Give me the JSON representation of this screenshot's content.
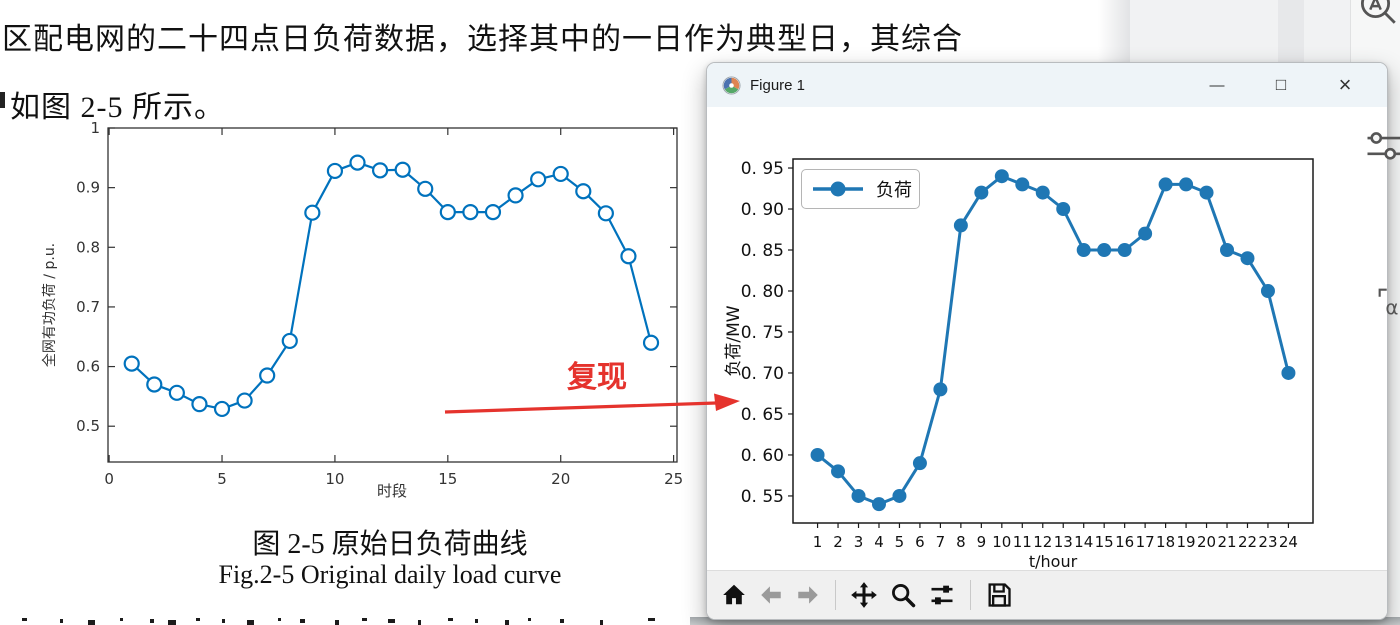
{
  "document": {
    "body_line1": "区配电网的二十四点日负荷数据，选择其中的一日作为典型日，其综合",
    "body_line2": "如图 2-5 所示。",
    "caption_zh": "图 2-5  原始日负荷曲线",
    "caption_en": "Fig.2-5 Original daily load curve"
  },
  "annotation": {
    "text": "复现",
    "color": "#e5332d"
  },
  "window": {
    "title": "Figure 1",
    "icon": "matplotlib-logo",
    "buttons": [
      {
        "name": "minimize",
        "glyph": "—"
      },
      {
        "name": "maximize",
        "glyph": "□"
      },
      {
        "name": "close",
        "glyph": "×"
      }
    ],
    "toolbar": [
      "home",
      "back",
      "forward",
      "pan",
      "zoom-to-rect",
      "configure-subplots",
      "save"
    ]
  },
  "side_toolbar": [
    "find-text",
    "adjust-sliders",
    "alpha-tool"
  ],
  "chart_data": [
    {
      "id": "matlab-original-load-curve",
      "type": "line",
      "x": [
        1,
        2,
        3,
        4,
        5,
        6,
        7,
        8,
        9,
        10,
        11,
        12,
        13,
        14,
        15,
        16,
        17,
        18,
        19,
        20,
        21,
        22,
        23,
        24
      ],
      "values": [
        0.605,
        0.57,
        0.556,
        0.537,
        0.529,
        0.543,
        0.585,
        0.643,
        0.858,
        0.928,
        0.942,
        0.929,
        0.93,
        0.898,
        0.859,
        0.859,
        0.859,
        0.887,
        0.914,
        0.923,
        0.894,
        0.857,
        0.785,
        0.64
      ],
      "xlabel": "时段",
      "ylabel": "全网有功负荷 / p.u.",
      "xticks": [
        0,
        5,
        10,
        15,
        20,
        25
      ],
      "xtick_labels": [
        "0",
        "5",
        "10",
        "15",
        "20",
        "25"
      ],
      "yticks": [
        0.5,
        0.6,
        0.7,
        0.8,
        0.9,
        1.0
      ],
      "ytick_labels": [
        "0.5",
        "0.6",
        "0.7",
        "0.8",
        "0.9",
        "1"
      ],
      "xlim": [
        -0.05,
        25.15
      ],
      "ylim": [
        0.44,
        1.0
      ],
      "line_color": "#0072BD",
      "marker": "open-circle",
      "grid": false,
      "legend": []
    },
    {
      "id": "matplotlib-reproduced-load-curve",
      "type": "line",
      "x": [
        1,
        2,
        3,
        4,
        5,
        6,
        7,
        8,
        9,
        10,
        11,
        12,
        13,
        14,
        15,
        16,
        17,
        18,
        19,
        20,
        21,
        22,
        23,
        24
      ],
      "values": [
        0.6,
        0.58,
        0.55,
        0.54,
        0.55,
        0.59,
        0.68,
        0.88,
        0.92,
        0.94,
        0.93,
        0.92,
        0.9,
        0.85,
        0.85,
        0.85,
        0.87,
        0.93,
        0.93,
        0.92,
        0.85,
        0.84,
        0.8,
        0.7
      ],
      "xlabel": "t/hour",
      "ylabel": "负荷/MW",
      "xticks": [
        1,
        2,
        3,
        4,
        5,
        6,
        7,
        8,
        9,
        10,
        11,
        12,
        13,
        14,
        15,
        16,
        17,
        18,
        19,
        20,
        21,
        22,
        23,
        24
      ],
      "xtick_labels": [
        "1",
        "2",
        "3",
        "4",
        "5",
        "6",
        "7",
        "8",
        "9",
        "10",
        "11",
        "12",
        "13",
        "14",
        "15",
        "16",
        "17",
        "18",
        "19",
        "20",
        "21",
        "22",
        "23",
        "24"
      ],
      "yticks": [
        0.95,
        0.9,
        0.85,
        0.8,
        0.75,
        0.7,
        0.65,
        0.6,
        0.55
      ],
      "ytick_labels": [
        "0. 95",
        "0. 90",
        "0. 85",
        "0. 80",
        "0. 75",
        "0. 70",
        "0. 65",
        "0. 60",
        "0. 55"
      ],
      "xlim": [
        -0.2,
        25.2
      ],
      "ylim": [
        0.517,
        0.961
      ],
      "line_color": "#1f77b4",
      "marker": "filled-circle",
      "grid": false,
      "legend": [
        {
          "label": "负荷",
          "position": "upper-left"
        }
      ]
    }
  ]
}
